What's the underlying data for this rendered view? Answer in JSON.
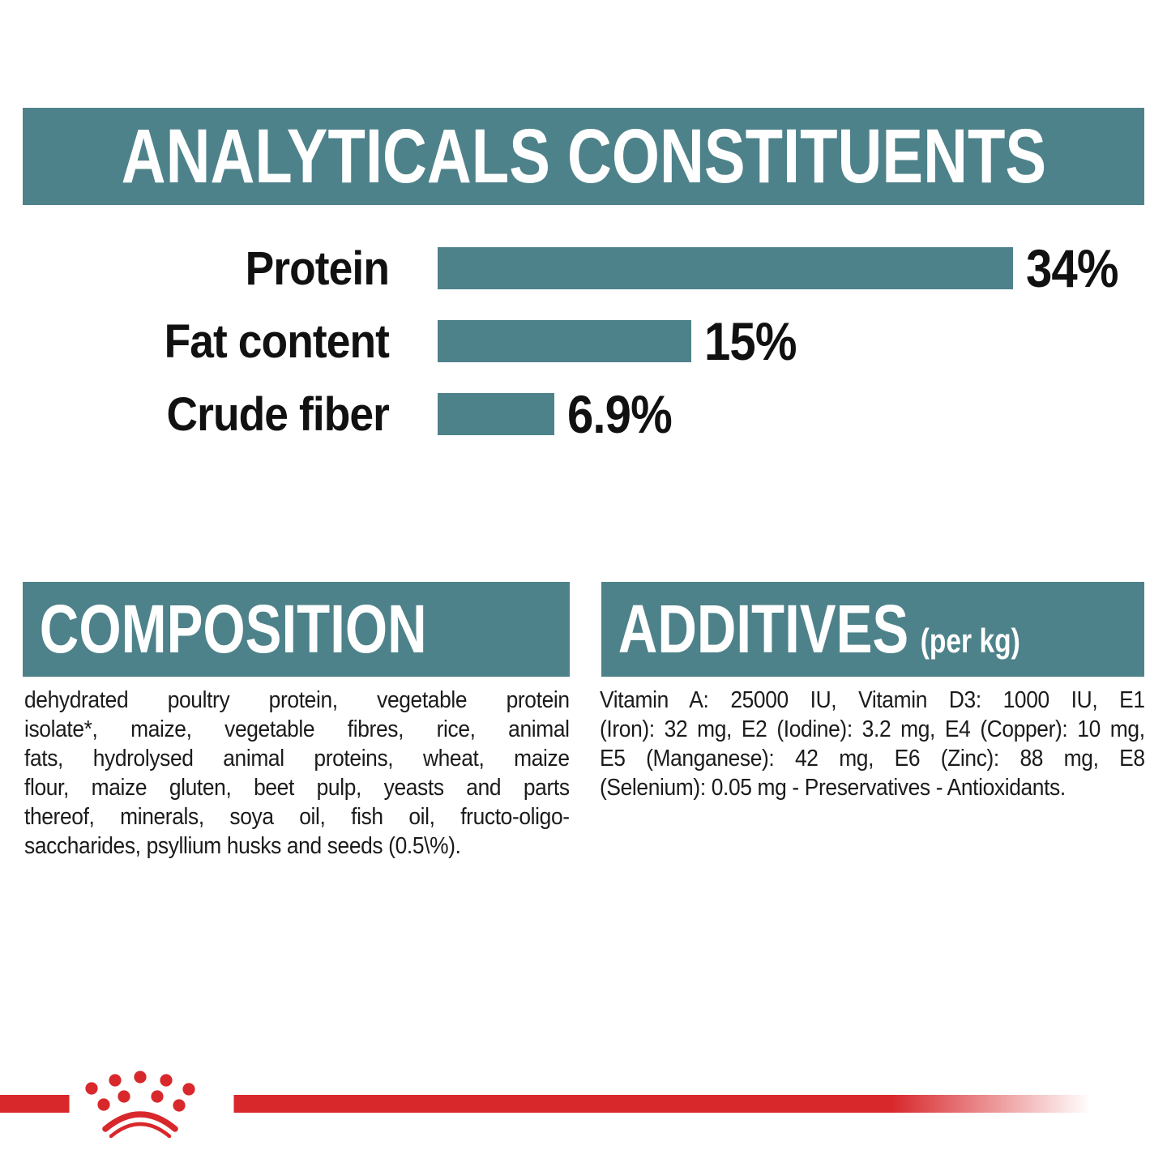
{
  "colors": {
    "teal": "#4E828A",
    "red": "#D8282C",
    "text": "#1B1B1B"
  },
  "header": {
    "title": "ANALYTICALS CONSTITUENTS"
  },
  "chart_data": {
    "type": "bar",
    "orientation": "horizontal",
    "title": "ANALYTICALS CONSTITUENTS",
    "categories": [
      "Protein",
      "Fat content",
      "Crude fiber"
    ],
    "values": [
      34,
      15,
      6.9
    ],
    "value_labels": [
      "34%",
      "15%",
      "6.9%"
    ],
    "unit": "%",
    "xlim": [
      0,
      34
    ],
    "bar_color": "#4E828A",
    "grid": false,
    "legend": "none"
  },
  "composition": {
    "heading": "COMPOSITION",
    "lines": [
      "dehydrated poultry protein, vegetable protein",
      "isolate*, maize, vegetable fibres, rice, animal",
      "fats, hydrolysed animal proteins, wheat, maize",
      "flour, maize gluten, beet pulp, yeasts and parts",
      "thereof, minerals, soya oil, fish oil, fructo-oligo-",
      "saccharides, psyllium husks and seeds (0.5\\%)."
    ]
  },
  "additives": {
    "heading": "ADDITIVES",
    "heading_suffix": "(per kg)",
    "lines": [
      "Vitamin A: 25000 IU, Vitamin D3: 1000 IU, E1",
      "(Iron): 32 mg, E2 (Iodine): 3.2 mg, E4 (Copper): 10 mg,",
      "E5 (Manganese): 42 mg, E6 (Zinc): 88 mg, E8",
      "(Selenium): 0.05 mg - Preservatives - Antioxidants."
    ]
  },
  "footer": {
    "logo_icon": "royal-canin-crown-icon",
    "line_color": "#D8282C"
  }
}
